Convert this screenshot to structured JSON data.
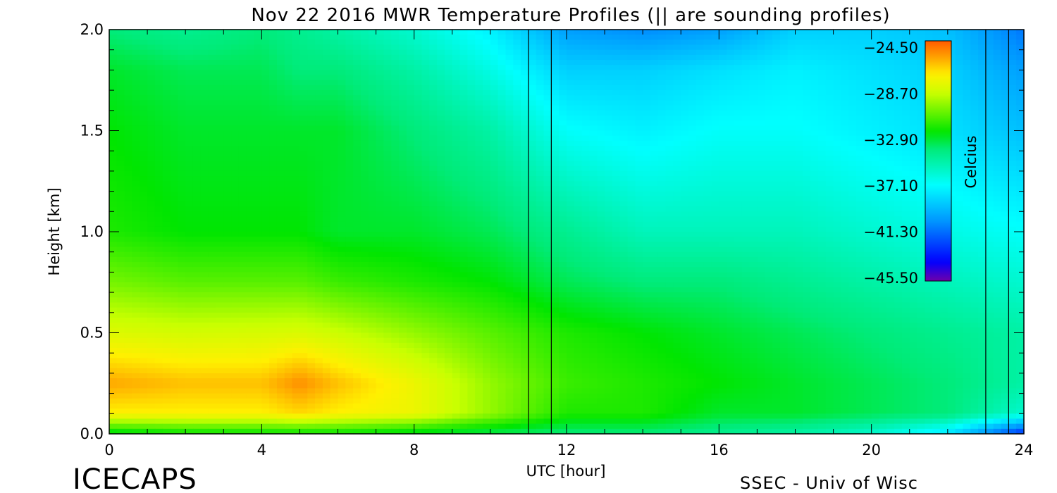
{
  "chart_data": {
    "type": "heatmap",
    "title": "Nov 22 2016 MWR Temperature Profiles (|| are sounding profiles)",
    "xlabel": "UTC [hour]",
    "ylabel": "Height [km]",
    "xlim": [
      0,
      24
    ],
    "ylim": [
      0,
      2.0
    ],
    "x_ticks": [
      "0",
      "4",
      "8",
      "12",
      "16",
      "20",
      "24"
    ],
    "y_ticks": [
      "0.0",
      "0.5",
      "1.0",
      "1.5",
      "2.0"
    ],
    "colorbar": {
      "label": "Celcius",
      "range": [
        -45.5,
        -24.5
      ],
      "ticks": [
        "-24.50",
        "-28.70",
        "-32.90",
        "-37.10",
        "-41.30",
        "-45.50"
      ],
      "colormap": "rainbow"
    },
    "sounding_profiles_utc": [
      11.0,
      11.6,
      23.0,
      23.6
    ],
    "temperature_samples": {
      "heights_km": [
        0.0,
        0.1,
        0.25,
        0.5,
        0.75,
        1.0,
        1.5,
        1.8,
        2.0
      ],
      "hours": [
        0,
        2,
        4,
        5,
        6,
        8,
        10,
        12,
        14,
        16,
        18,
        20,
        22,
        24
      ],
      "values_celsius": [
        [
          -33,
          -32.5,
          -32.5,
          -32.5,
          -32.5,
          -33,
          -33.5,
          -34,
          -34,
          -34.5,
          -35,
          -36,
          -38,
          -43
        ],
        [
          -27.5,
          -27.5,
          -27.5,
          -27,
          -27.5,
          -28,
          -30,
          -32,
          -32,
          -33,
          -33,
          -33.5,
          -34,
          -36
        ],
        [
          -26,
          -26.5,
          -26.5,
          -25.5,
          -26.5,
          -28,
          -30,
          -31.5,
          -32,
          -32.5,
          -33,
          -33.5,
          -34,
          -35
        ],
        [
          -28.5,
          -28.8,
          -28.7,
          -28.6,
          -29,
          -30,
          -31,
          -32,
          -32.5,
          -33,
          -33.5,
          -34,
          -34.5,
          -35
        ],
        [
          -30.5,
          -31,
          -31,
          -31,
          -31.5,
          -32,
          -32.5,
          -33.5,
          -34,
          -34,
          -34.5,
          -35,
          -35.5,
          -36
        ],
        [
          -32,
          -32.5,
          -32.5,
          -32.5,
          -33,
          -33,
          -33.5,
          -34.5,
          -35.5,
          -35.5,
          -35.5,
          -36,
          -36.5,
          -37
        ],
        [
          -32.5,
          -33,
          -33,
          -33,
          -33,
          -34,
          -35,
          -37,
          -37.5,
          -37,
          -37,
          -37.5,
          -38,
          -39
        ],
        [
          -33,
          -33.5,
          -33.5,
          -34,
          -34,
          -35,
          -36.5,
          -38.5,
          -38.5,
          -38,
          -37.5,
          -38,
          -38.5,
          -40
        ],
        [
          -34,
          -34.5,
          -34,
          -34.5,
          -35,
          -36,
          -37.5,
          -40,
          -40.5,
          -40,
          -38.5,
          -38.5,
          -39,
          -41
        ]
      ]
    }
  },
  "footer": {
    "left": "ICECAPS",
    "right": "SSEC - Univ of Wisc"
  }
}
